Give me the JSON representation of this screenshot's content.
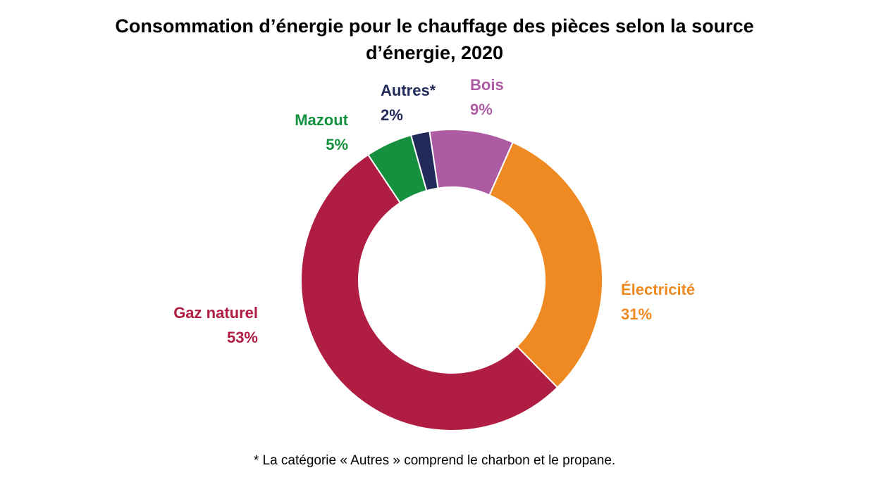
{
  "title": {
    "line1": "Consommation d’énergie pour le chauffage des pièces selon la source",
    "line2": "d’énergie, 2020"
  },
  "footnote": "* La catégorie « Autres » comprend le charbon et le propane.",
  "chart_data": {
    "type": "pie",
    "variant": "donut",
    "title": "Consommation d’énergie pour le chauffage des pièces selon la source d’énergie, 2020",
    "slices": [
      {
        "label": "Bois",
        "value_label": "9%",
        "value": 9,
        "color": "#ad5ca3"
      },
      {
        "label": "Électricité",
        "value_label": "31%",
        "value": 31,
        "color": "#ef8a22"
      },
      {
        "label": "Gaz naturel",
        "value_label": "53%",
        "value": 53,
        "color": "#b01d42"
      },
      {
        "label": "Mazout",
        "value_label": "5%",
        "value": 5,
        "color": "#15903f"
      },
      {
        "label": "Autres*",
        "value_label": "2%",
        "value": 2,
        "color": "#222a59"
      }
    ]
  }
}
